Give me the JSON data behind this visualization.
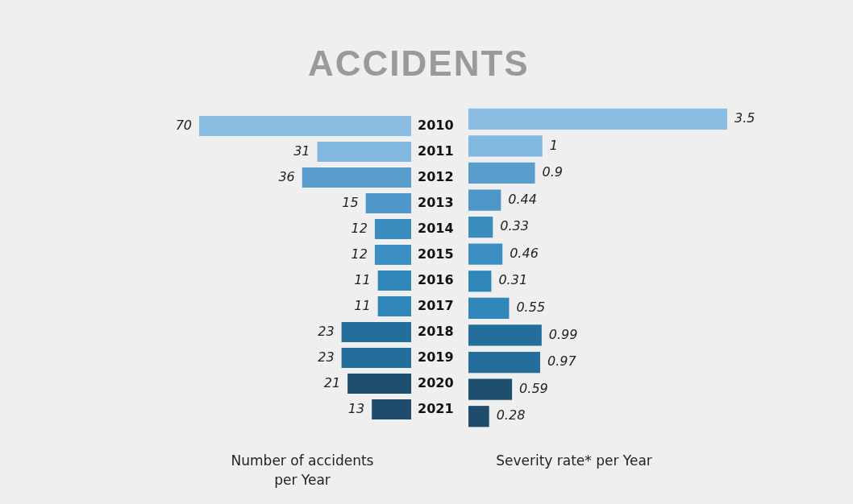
{
  "chart_data": [
    {
      "type": "bar",
      "orientation": "horizontal",
      "title": "ACCIDENTS",
      "xlabel": "Number of accidents per Year",
      "tick_labels": "y",
      "data_labels": true,
      "categories": [
        "2010",
        "2011",
        "2012",
        "2013",
        "2014",
        "2015",
        "2016",
        "2017",
        "2018",
        "2019",
        "2020",
        "2021"
      ],
      "values": [
        70,
        31,
        36,
        15,
        12,
        12,
        11,
        11,
        23,
        23,
        21,
        13
      ],
      "colors": [
        "#8bbde3",
        "#80b8e0",
        "#5a9ccc",
        "#4f97c8",
        "#3b8dc0",
        "#3b8fc2",
        "#2f86b8",
        "#2f86b8",
        "#236e9a",
        "#236e9a",
        "#1f4f6f",
        "#1f4c6c"
      ]
    },
    {
      "type": "bar",
      "orientation": "horizontal",
      "xlabel": "Severity rate* per Year",
      "tick_labels": false,
      "data_labels": true,
      "categories": [
        "2010",
        "2011",
        "2012",
        "2013",
        "2014",
        "2015",
        "2016",
        "2017",
        "2018",
        "2019",
        "2020",
        "2021"
      ],
      "values": [
        3.5,
        1,
        0.9,
        0.44,
        0.33,
        0.46,
        0.31,
        0.55,
        0.99,
        0.97,
        0.59,
        0.28
      ],
      "colors": [
        "#8bbde3",
        "#80b8e0",
        "#5a9ccc",
        "#4f97c8",
        "#3b8dc0",
        "#3b8fc2",
        "#2f86b8",
        "#2f86b8",
        "#236e9a",
        "#236e9a",
        "#1f4f6f",
        "#1f4c6c"
      ]
    }
  ]
}
